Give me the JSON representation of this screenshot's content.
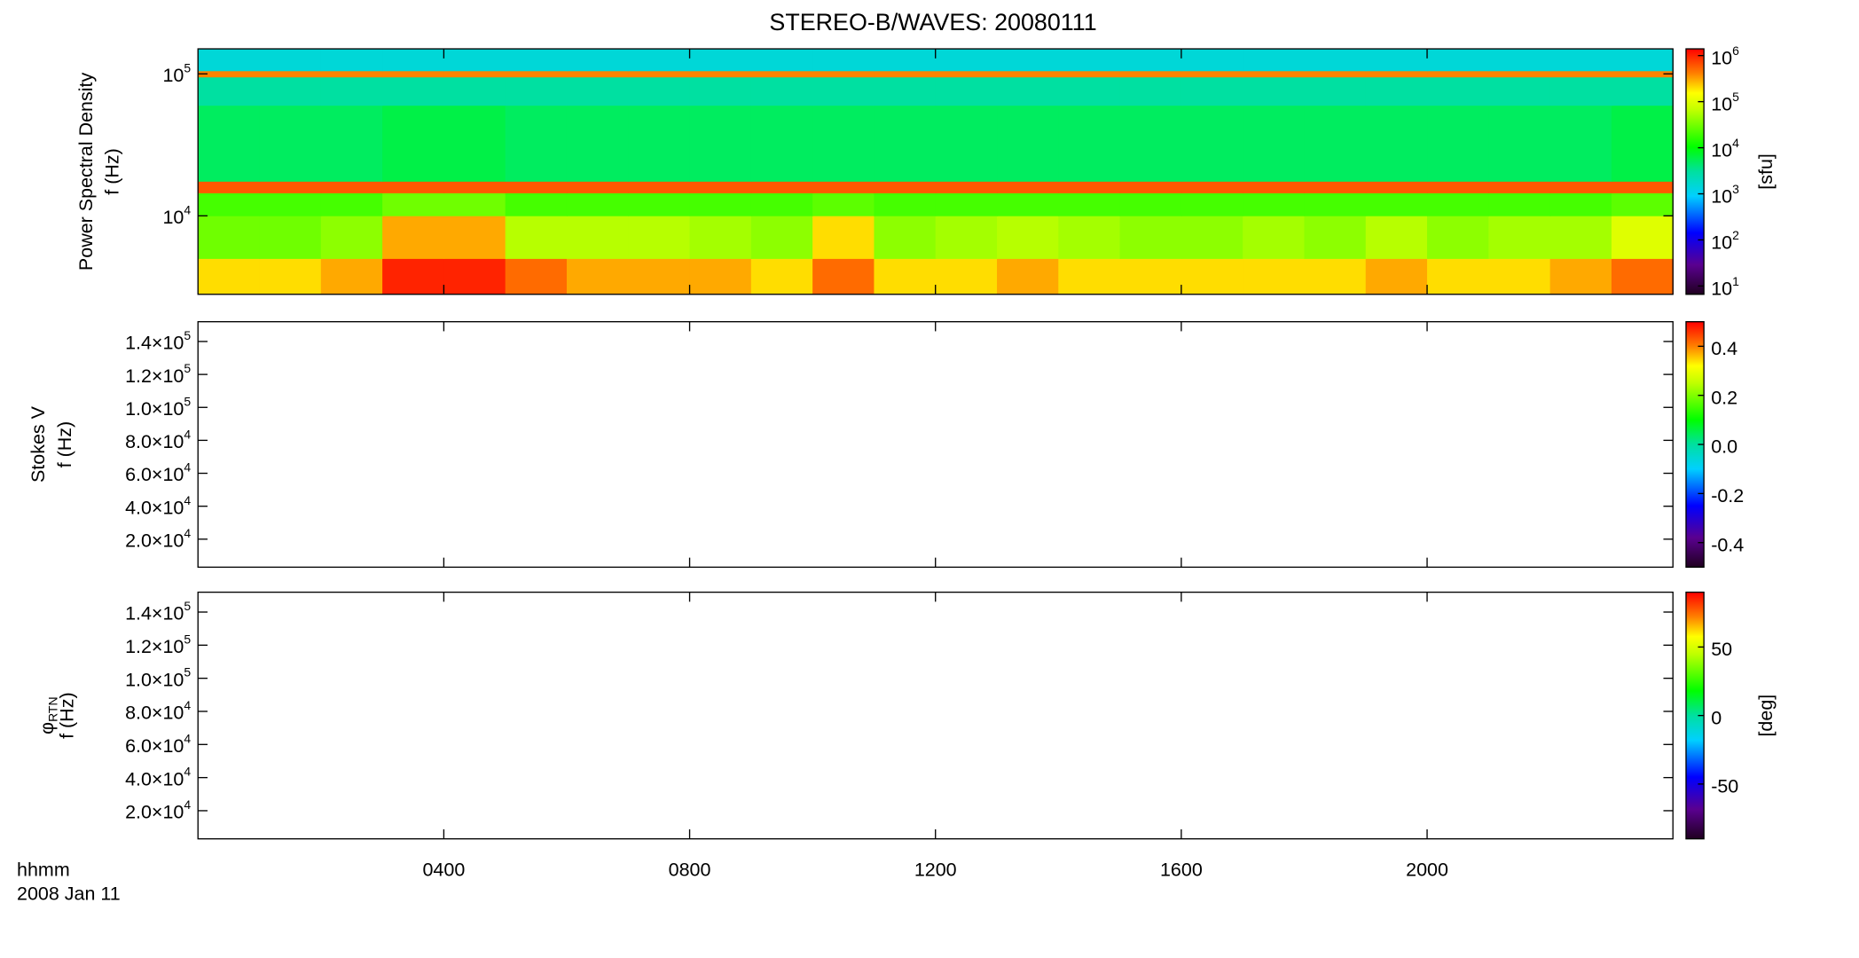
{
  "chart_data": [
    {
      "type": "heatmap",
      "title": "STEREO-B/WAVES: 20080111",
      "ylabel": [
        "Power Spectral Density",
        "f (Hz)"
      ],
      "log_y": true,
      "ylim": [
        2800,
        150000
      ],
      "yticks": [
        {
          "value": 10000,
          "label": "10^4"
        },
        {
          "value": 100000,
          "label": "10^5"
        }
      ],
      "xlim": [
        0,
        24
      ],
      "x_edges": [
        0,
        1,
        2,
        3,
        4,
        5,
        6,
        7,
        8,
        9,
        10,
        11,
        12,
        13,
        14,
        15,
        16,
        17,
        18,
        19,
        20,
        21,
        22,
        23,
        24
      ],
      "y_edges": [
        2800,
        5000,
        10000,
        14500,
        17500,
        60000,
        95000,
        105000,
        150000
      ],
      "z": [
        [
          200000,
          200000,
          300000,
          1000000,
          1000000,
          500000,
          300000,
          300000,
          300000,
          200000,
          500000,
          200000,
          200000,
          300000,
          200000,
          200000,
          200000,
          200000,
          200000,
          300000,
          200000,
          200000,
          300000,
          500000
        ],
        [
          30000,
          30000,
          40000,
          300000,
          300000,
          60000,
          60000,
          60000,
          50000,
          40000,
          200000,
          40000,
          50000,
          60000,
          50000,
          40000,
          40000,
          50000,
          40000,
          60000,
          40000,
          50000,
          50000,
          100000
        ],
        [
          20000,
          20000,
          20000,
          30000,
          30000,
          20000,
          20000,
          20000,
          20000,
          20000,
          25000,
          20000,
          20000,
          20000,
          20000,
          20000,
          20000,
          20000,
          20000,
          20000,
          20000,
          20000,
          20000,
          25000
        ],
        [
          600000,
          600000,
          600000,
          600000,
          600000,
          600000,
          600000,
          600000,
          600000,
          600000,
          600000,
          600000,
          600000,
          600000,
          600000,
          600000,
          600000,
          600000,
          600000,
          600000,
          600000,
          600000,
          600000,
          600000
        ],
        [
          5000,
          5000,
          5000,
          6000,
          6000,
          5000,
          5000,
          5000,
          5000,
          5000,
          5000,
          5000,
          5000,
          5000,
          5000,
          5000,
          5000,
          5000,
          5000,
          5000,
          5000,
          5000,
          5000,
          6000
        ],
        [
          3000,
          3000,
          3000,
          3000,
          3000,
          3000,
          3000,
          3000,
          3000,
          3000,
          3000,
          3000,
          3000,
          3000,
          3000,
          3000,
          3000,
          3000,
          3000,
          3000,
          3000,
          3000,
          3000,
          3000
        ],
        [
          400000,
          400000,
          400000,
          400000,
          400000,
          400000,
          400000,
          400000,
          400000,
          400000,
          400000,
          400000,
          400000,
          400000,
          400000,
          400000,
          400000,
          400000,
          400000,
          400000,
          400000,
          400000,
          400000,
          400000
        ],
        [
          1500,
          1500,
          1500,
          1500,
          1500,
          1500,
          1500,
          1500,
          1500,
          1500,
          1500,
          1500,
          1500,
          1500,
          1500,
          1500,
          1500,
          1500,
          1500,
          1500,
          1500,
          1500,
          1500,
          1500
        ]
      ],
      "colorbar": {
        "log": true,
        "lim": [
          6.6,
          1400000
        ],
        "label": "[sfu]",
        "ticks": [
          {
            "value": 10,
            "label": "10^1"
          },
          {
            "value": 100,
            "label": "10^2"
          },
          {
            "value": 1000,
            "label": "10^3"
          },
          {
            "value": 10000,
            "label": "10^4"
          },
          {
            "value": 100000,
            "label": "10^5"
          },
          {
            "value": 1000000,
            "label": "10^6"
          }
        ]
      }
    },
    {
      "type": "heatmap",
      "ylabel": [
        "Stokes V",
        "f (Hz)"
      ],
      "log_y": false,
      "ylim": [
        3000,
        152000
      ],
      "yticks": [
        {
          "value": 20000,
          "label": "2.0×10^4"
        },
        {
          "value": 40000,
          "label": "4.0×10^4"
        },
        {
          "value": 60000,
          "label": "6.0×10^4"
        },
        {
          "value": 80000,
          "label": "8.0×10^4"
        },
        {
          "value": 100000,
          "label": "1.0×10^5"
        },
        {
          "value": 120000,
          "label": "1.2×10^5"
        },
        {
          "value": 140000,
          "label": "1.4×10^5"
        }
      ],
      "xlim": [
        0,
        24
      ],
      "colorbar": {
        "log": false,
        "lim": [
          -0.5,
          0.5
        ],
        "ticks": [
          {
            "value": -0.4,
            "label": "-0.4"
          },
          {
            "value": -0.2,
            "label": "-0.2"
          },
          {
            "value": 0,
            "label": "0.0"
          },
          {
            "value": 0.2,
            "label": "0.2"
          },
          {
            "value": 0.4,
            "label": "0.4"
          }
        ]
      }
    },
    {
      "type": "heatmap",
      "ylabel": [
        "φ_RTN",
        "f (Hz)"
      ],
      "log_y": false,
      "ylim": [
        3000,
        152000
      ],
      "yticks": [
        {
          "value": 20000,
          "label": "2.0×10^4"
        },
        {
          "value": 40000,
          "label": "4.0×10^4"
        },
        {
          "value": 60000,
          "label": "6.0×10^4"
        },
        {
          "value": 80000,
          "label": "8.0×10^4"
        },
        {
          "value": 100000,
          "label": "1.0×10^5"
        },
        {
          "value": 120000,
          "label": "1.2×10^5"
        },
        {
          "value": 140000,
          "label": "1.4×10^5"
        }
      ],
      "xlim": [
        0,
        24
      ],
      "xlabel": [
        "hhmm",
        "2008 Jan 11"
      ],
      "xticks": [
        {
          "value": 4,
          "label": "0400"
        },
        {
          "value": 8,
          "label": "0800"
        },
        {
          "value": 12,
          "label": "1200"
        },
        {
          "value": 16,
          "label": "1600"
        },
        {
          "value": 20,
          "label": "2000"
        }
      ],
      "colorbar": {
        "log": false,
        "lim": [
          -90,
          90
        ],
        "label": "[deg]",
        "ticks": [
          -50,
          0,
          50
        ]
      }
    }
  ]
}
